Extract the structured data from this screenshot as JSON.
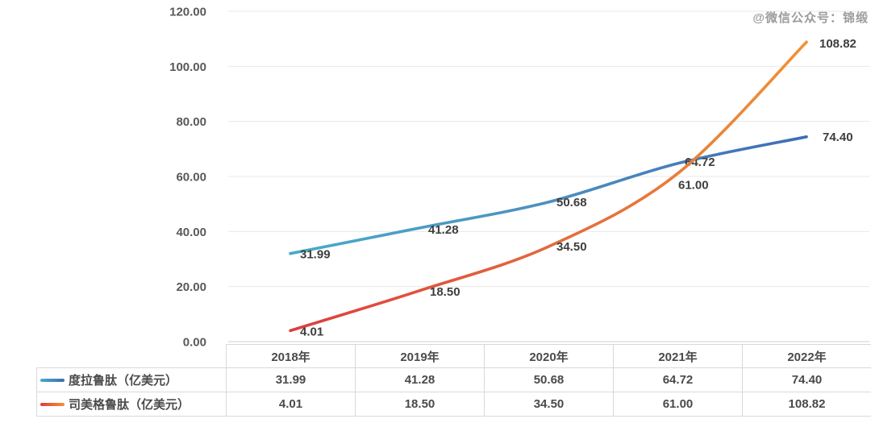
{
  "watermark": "@微信公众号：锦缎",
  "colors": {
    "blue_start": "#47ABC8",
    "blue_mid": "#4E8FC0",
    "blue_end": "#3E6DB5",
    "orange_start": "#DE3D3E",
    "orange_mid": "#E2693D",
    "orange_end": "#F09236",
    "gridline": "#E9E9E9",
    "axis_line": "#D2D2D2",
    "axis_text": "#595959",
    "label_text": "#3E3E3E",
    "watermark_text": "#9C9C9C",
    "table_border": "#D9D9D9",
    "table_text": "#4A4A4A"
  },
  "chart_data": {
    "type": "line",
    "smooth": true,
    "grid": true,
    "legend_position": "table-left",
    "title": "",
    "xlabel": "",
    "ylabel": "",
    "ylim": [
      0,
      120
    ],
    "ytick_step": 20,
    "ytick_labels": [
      "0.00",
      "20.00",
      "40.00",
      "60.00",
      "80.00",
      "100.00",
      "120.00"
    ],
    "categories": [
      "2018年",
      "2019年",
      "2020年",
      "2021年",
      "2022年"
    ],
    "series": [
      {
        "name": "度拉鲁肽（亿美元）",
        "values": [
          31.99,
          41.28,
          50.68,
          64.72,
          74.4
        ],
        "point_labels": [
          "31.99",
          "41.28",
          "50.68",
          "64.72",
          "74.40"
        ],
        "label_offsets": [
          [
            12,
            6
          ],
          [
            11,
            7
          ],
          [
            10,
            5
          ],
          [
            9,
            3
          ],
          [
            20,
            5
          ]
        ]
      },
      {
        "name": "司美格鲁肽（亿美元）",
        "values": [
          4.01,
          18.5,
          34.5,
          61.0,
          108.82
        ],
        "point_labels": [
          "4.01",
          "18.50",
          "34.50",
          "61.00",
          "108.82"
        ],
        "label_offsets": [
          [
            12,
            6
          ],
          [
            13,
            6
          ],
          [
            10,
            5
          ],
          [
            1,
            19
          ],
          [
            16,
            7
          ]
        ]
      }
    ]
  }
}
